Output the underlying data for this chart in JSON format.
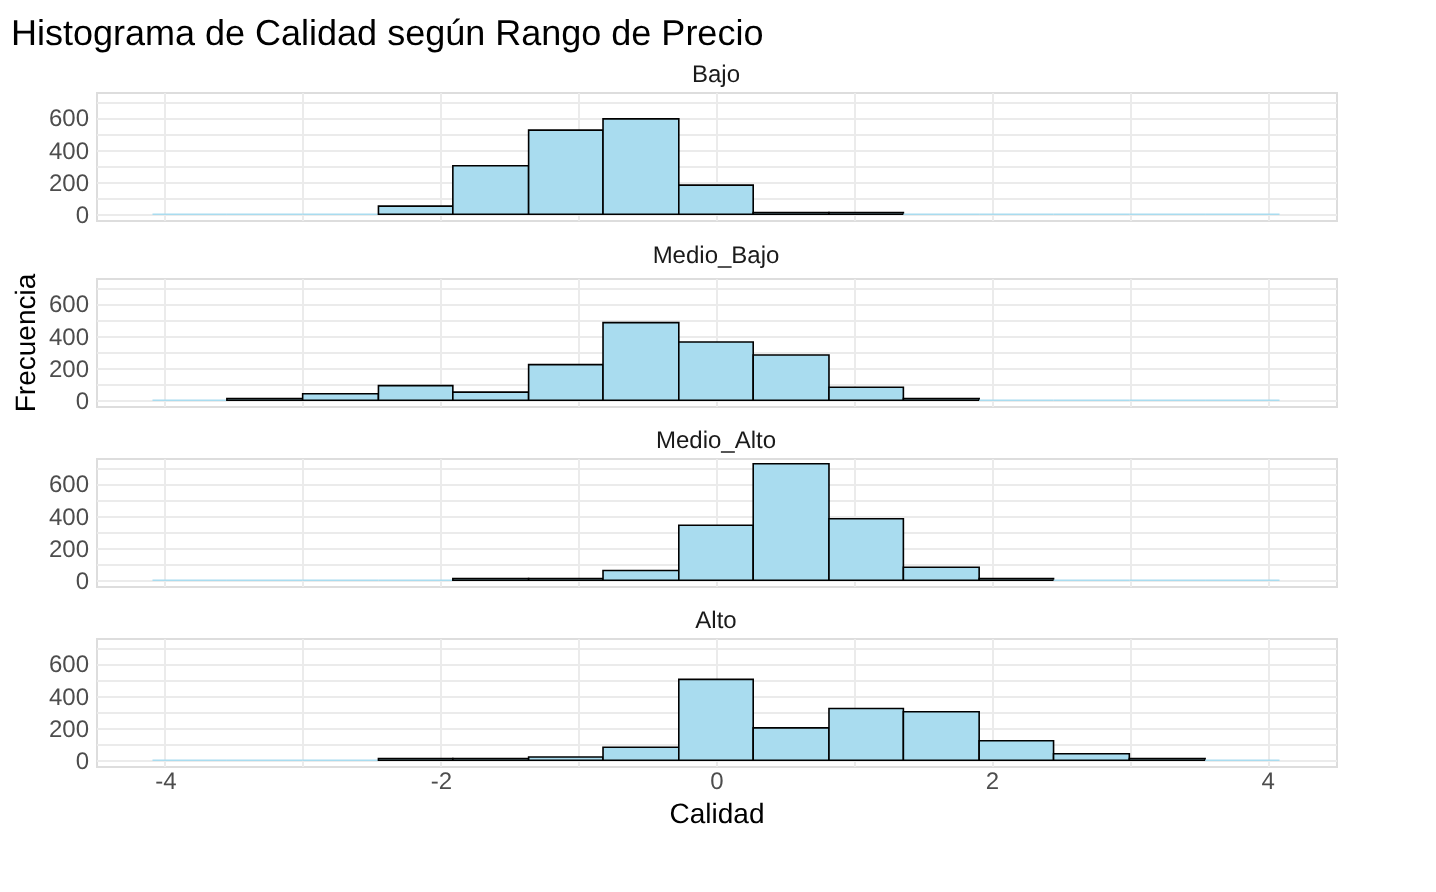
{
  "chart_data": [
    {
      "type": "histogram",
      "title": "Histograma de Calidad según Rango de Precio",
      "subtitle": "Bajo",
      "color": "#a9dcef",
      "bins": [
        -4.09,
        -3.55,
        -3.0,
        -2.45,
        -1.91,
        -1.36,
        -0.82,
        -0.27,
        0.27,
        0.82,
        1.36,
        1.91,
        2.45,
        3.0,
        3.55,
        4.09
      ],
      "values": [
        0,
        0,
        0,
        50,
        300,
        520,
        590,
        180,
        10,
        10,
        0,
        0,
        0,
        0,
        0
      ],
      "xlim": [
        -4.5,
        4.5
      ],
      "xticks": [
        {
          "value": -4,
          "label": null
        },
        {
          "value": -3,
          "label": null
        },
        {
          "value": -2,
          "label": null
        },
        {
          "value": -1,
          "label": null
        },
        {
          "value": 0,
          "label": null
        },
        {
          "value": 1,
          "label": null
        },
        {
          "value": 2,
          "label": null
        },
        {
          "value": 3,
          "label": null
        },
        {
          "value": 4,
          "label": null
        }
      ],
      "ylim": [
        -36,
        756
      ],
      "yticks": [
        0,
        {
          "value": 100,
          "label": null
        },
        200,
        {
          "value": 300,
          "label": null
        },
        400,
        {
          "value": 500,
          "label": null
        },
        600,
        {
          "value": 700,
          "label": null
        }
      ],
      "grid": true,
      "tick_labels": "y"
    },
    {
      "type": "histogram",
      "subtitle": "Medio_Bajo",
      "ylabel": "Frecuencia",
      "color": "#a9dcef",
      "bins": [
        -4.09,
        -3.55,
        -3.0,
        -2.45,
        -1.91,
        -1.36,
        -0.82,
        -0.27,
        0.27,
        0.82,
        1.36,
        1.91,
        2.45,
        3.0,
        3.55,
        4.09
      ],
      "values": [
        0,
        10,
        40,
        90,
        50,
        220,
        480,
        360,
        280,
        80,
        10,
        0,
        0,
        0,
        0
      ],
      "xlim": [
        -4.5,
        4.5
      ],
      "xticks": [
        {
          "value": -4,
          "label": null
        },
        {
          "value": -3,
          "label": null
        },
        {
          "value": -2,
          "label": null
        },
        {
          "value": -1,
          "label": null
        },
        {
          "value": 0,
          "label": null
        },
        {
          "value": 1,
          "label": null
        },
        {
          "value": 2,
          "label": null
        },
        {
          "value": 3,
          "label": null
        },
        {
          "value": 4,
          "label": null
        }
      ],
      "ylim": [
        -36,
        756
      ],
      "yticks": [
        0,
        {
          "value": 100,
          "label": null
        },
        200,
        {
          "value": 300,
          "label": null
        },
        400,
        {
          "value": 500,
          "label": null
        },
        600,
        {
          "value": 700,
          "label": null
        }
      ],
      "grid": true,
      "tick_labels": "y"
    },
    {
      "type": "histogram",
      "subtitle": "Medio_Alto",
      "color": "#a9dcef",
      "bins": [
        -4.09,
        -3.55,
        -3.0,
        -2.45,
        -1.91,
        -1.36,
        -0.82,
        -0.27,
        0.27,
        0.82,
        1.36,
        1.91,
        2.45,
        3.0,
        3.55,
        4.09
      ],
      "values": [
        0,
        0,
        0,
        0,
        10,
        10,
        60,
        340,
        720,
        380,
        80,
        10,
        0,
        0,
        0
      ],
      "xlim": [
        -4.5,
        4.5
      ],
      "xticks": [
        {
          "value": -4,
          "label": null
        },
        {
          "value": -3,
          "label": null
        },
        {
          "value": -2,
          "label": null
        },
        {
          "value": -1,
          "label": null
        },
        {
          "value": 0,
          "label": null
        },
        {
          "value": 1,
          "label": null
        },
        {
          "value": 2,
          "label": null
        },
        {
          "value": 3,
          "label": null
        },
        {
          "value": 4,
          "label": null
        }
      ],
      "ylim": [
        -36,
        756
      ],
      "yticks": [
        0,
        {
          "value": 100,
          "label": null
        },
        200,
        {
          "value": 300,
          "label": null
        },
        400,
        {
          "value": 500,
          "label": null
        },
        600,
        {
          "value": 700,
          "label": null
        }
      ],
      "grid": true,
      "tick_labels": "y"
    },
    {
      "type": "histogram",
      "subtitle": "Alto",
      "xlabel": "Calidad",
      "color": "#a9dcef",
      "bins": [
        -4.09,
        -3.55,
        -3.0,
        -2.45,
        -1.91,
        -1.36,
        -0.82,
        -0.27,
        0.27,
        0.82,
        1.36,
        1.91,
        2.45,
        3.0,
        3.55,
        4.09
      ],
      "values": [
        0,
        0,
        0,
        10,
        10,
        20,
        80,
        500,
        200,
        320,
        300,
        120,
        40,
        10,
        0
      ],
      "xlim": [
        -4.5,
        4.5
      ],
      "xticks": [
        {
          "value": -4,
          "label": "-4"
        },
        {
          "value": -3,
          "label": null
        },
        {
          "value": -2,
          "label": "-2"
        },
        {
          "value": -1,
          "label": null
        },
        {
          "value": 0,
          "label": "0"
        },
        {
          "value": 1,
          "label": null
        },
        {
          "value": 2,
          "label": "2"
        },
        {
          "value": 3,
          "label": null
        },
        {
          "value": 4,
          "label": "4"
        }
      ],
      "ylim": [
        -36,
        756
      ],
      "yticks": [
        0,
        {
          "value": 100,
          "label": null
        },
        200,
        {
          "value": 300,
          "label": null
        },
        400,
        {
          "value": 500,
          "label": null
        },
        600,
        {
          "value": 700,
          "label": null
        }
      ],
      "grid": true
    }
  ]
}
